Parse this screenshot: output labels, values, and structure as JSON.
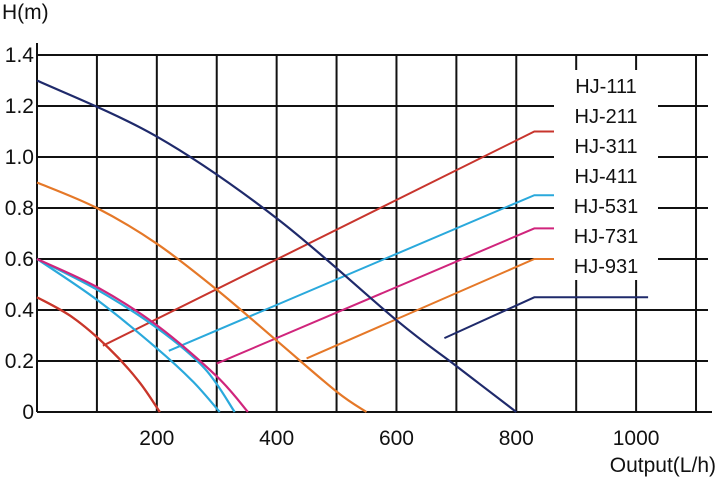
{
  "chart_data": {
    "type": "line",
    "title": "",
    "xlabel": "Output(L/h)",
    "ylabel": "H(m)",
    "xlim": [
      0,
      1120
    ],
    "ylim": [
      0,
      1.4
    ],
    "x_ticks": [
      200,
      400,
      600,
      800,
      1000
    ],
    "x_tick_labels": [
      "200",
      "400",
      "600",
      "800",
      "1000"
    ],
    "y_ticks": [
      0,
      0.2,
      0.4,
      0.6,
      0.8,
      1.0,
      1.2,
      1.4
    ],
    "y_tick_labels": [
      "0",
      "0.2",
      "0.4",
      "0.6",
      "0.8",
      "1.0",
      "1.2",
      "1.4"
    ],
    "grid": true,
    "legend_placement": "top-right, labels joined to each curve by leader lines",
    "series": [
      {
        "name": "HJ-111",
        "color": "#e57828",
        "points": [
          [
            0,
            0.45
          ],
          [
            60,
            0.37
          ],
          [
            120,
            0.25
          ],
          [
            170,
            0.12
          ],
          [
            205,
            0.0
          ]
        ]
      },
      {
        "name": "HJ-211",
        "color": "#c8352d",
        "points": [
          [
            0,
            0.45
          ],
          [
            60,
            0.37
          ],
          [
            120,
            0.25
          ],
          [
            170,
            0.12
          ],
          [
            205,
            0.0
          ]
        ]
      },
      {
        "name": "HJ-311",
        "color": "#2aa9dc",
        "points": [
          [
            0,
            0.6
          ],
          [
            100,
            0.44
          ],
          [
            200,
            0.25
          ],
          [
            260,
            0.12
          ],
          [
            305,
            0.0
          ]
        ]
      },
      {
        "name": "HJ-411",
        "color": "#2aa9dc",
        "points": [
          [
            0,
            0.6
          ],
          [
            100,
            0.48
          ],
          [
            200,
            0.33
          ],
          [
            280,
            0.17
          ],
          [
            330,
            0.0
          ]
        ]
      },
      {
        "name": "HJ-531",
        "color": "#d0257c",
        "points": [
          [
            0,
            0.6
          ],
          [
            100,
            0.49
          ],
          [
            200,
            0.34
          ],
          [
            300,
            0.14
          ],
          [
            352,
            0.0
          ]
        ]
      },
      {
        "name": "HJ-731",
        "color": "#e57828",
        "points": [
          [
            0,
            0.9
          ],
          [
            100,
            0.8
          ],
          [
            200,
            0.66
          ],
          [
            300,
            0.48
          ],
          [
            400,
            0.28
          ],
          [
            500,
            0.08
          ],
          [
            550,
            0.0
          ]
        ]
      },
      {
        "name": "HJ-931",
        "color": "#1f2a6b",
        "points": [
          [
            0,
            1.3
          ],
          [
            200,
            1.08
          ],
          [
            400,
            0.76
          ],
          [
            600,
            0.36
          ],
          [
            700,
            0.18
          ],
          [
            800,
            0.0
          ]
        ]
      }
    ],
    "leaders": [
      {
        "series": "HJ-211",
        "color": "#c8352d",
        "points": [
          [
            110,
            0.26
          ],
          [
            830,
            1.1
          ],
          [
            1020,
            1.1
          ]
        ]
      },
      {
        "series": "HJ-411",
        "color": "#2aa9dc",
        "points": [
          [
            220,
            0.24
          ],
          [
            830,
            0.85
          ],
          [
            1020,
            0.85
          ]
        ]
      },
      {
        "series": "HJ-531",
        "color": "#d0257c",
        "points": [
          [
            300,
            0.19
          ],
          [
            830,
            0.72
          ],
          [
            1020,
            0.72
          ]
        ]
      },
      {
        "series": "HJ-731",
        "color": "#e57828",
        "points": [
          [
            450,
            0.21
          ],
          [
            830,
            0.6
          ],
          [
            1020,
            0.6
          ]
        ]
      },
      {
        "series": "HJ-931",
        "color": "#1f2a6b",
        "points": [
          [
            680,
            0.29
          ],
          [
            830,
            0.45
          ],
          [
            1020,
            0.45
          ]
        ]
      }
    ]
  }
}
